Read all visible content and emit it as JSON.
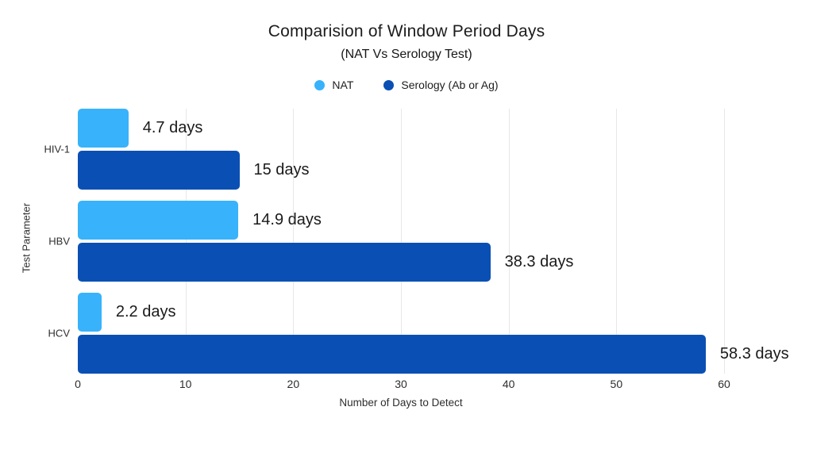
{
  "title": "Comparision of Window Period Days",
  "subtitle": "(NAT Vs Serology Test)",
  "chart_data": {
    "type": "bar",
    "orientation": "horizontal",
    "title": "Comparision of Window Period Days",
    "subtitle": "(NAT Vs Serology Test)",
    "categories": [
      "HIV-1",
      "HBV",
      "HCV"
    ],
    "series": [
      {
        "name": "NAT",
        "color": "#38B2FB",
        "values": [
          4.7,
          14.9,
          2.2
        ],
        "labels": [
          "4.7 days",
          "14.9 days",
          "2.2 days"
        ]
      },
      {
        "name": "Serology (Ab or Ag)",
        "color": "#0A50B4",
        "values": [
          15,
          38.3,
          58.3
        ],
        "labels": [
          "15 days",
          "38.3 days",
          "58.3 days"
        ]
      }
    ],
    "xlabel": "Number of Days to Detect",
    "ylabel": "Test Parameter",
    "xlim": [
      0,
      60
    ],
    "xticks": [
      0,
      10,
      20,
      30,
      40,
      50,
      60
    ],
    "grid": "vertical-only",
    "legend_position": "top-center"
  },
  "colors": {
    "background": "#FFFFFF",
    "gridline": "#E7E7E7",
    "title_text": "#1C1C1C",
    "axis_text": "#2E2E2E",
    "value_label_text": "#1A1A1A"
  }
}
